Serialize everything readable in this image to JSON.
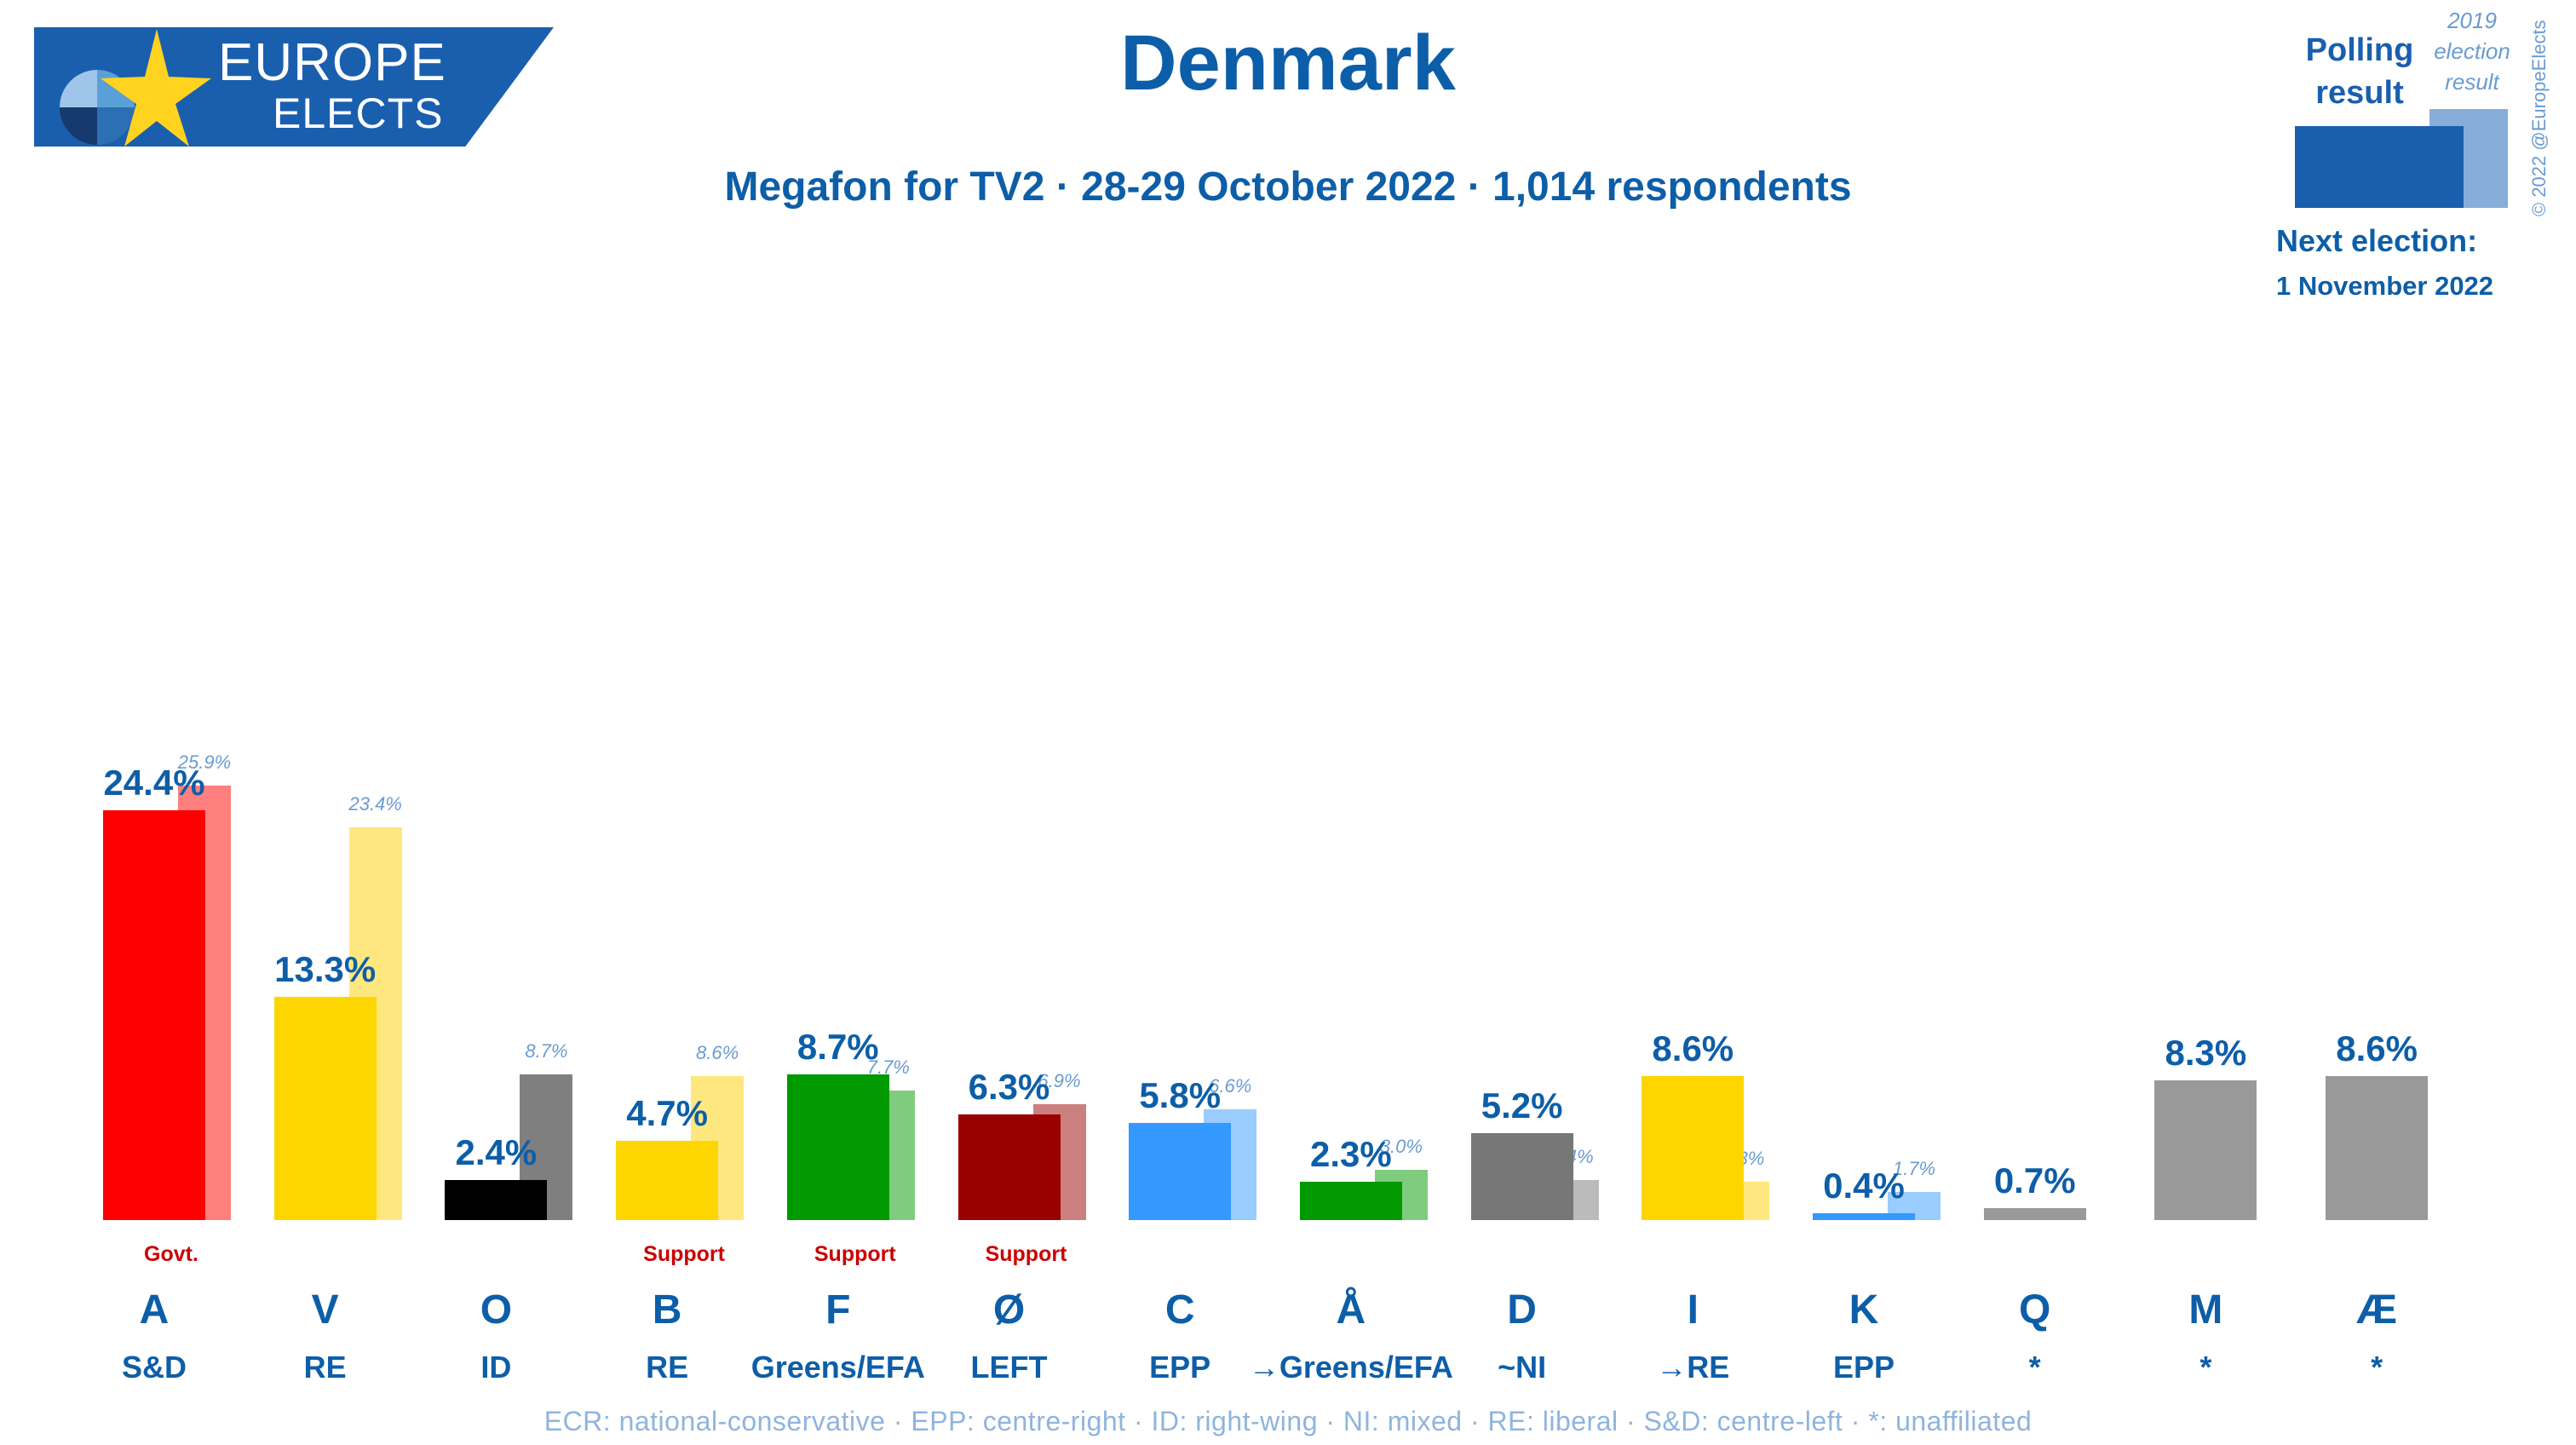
{
  "logo": {
    "line1": "EUROPE",
    "line2": "ELECTS"
  },
  "header": {
    "title": "Denmark",
    "subtitle": "Megafon for TV2 · 28-29 October 2022 · 1,014 respondents"
  },
  "legend": {
    "polling_line1": "Polling",
    "polling_line2": "result",
    "prev_line1": "2019",
    "prev_line2": "election",
    "prev_line3": "result",
    "copyright": "© 2022 @EuropeElects",
    "next_election_label": "Next election:",
    "next_election_date": "1 November 2022"
  },
  "footer": {
    "text": "ECR: national-conservative · EPP: centre-right · ID: right-wing · NI: mixed · RE: liberal · S&D: centre-left · *: unaffiliated"
  },
  "colors": {
    "text_primary": "#0d5ea8",
    "text_secondary": "#6a9bd1",
    "status": "#cc0000",
    "banner": "#1a5fae"
  },
  "chart_data": {
    "type": "bar",
    "title": "Denmark",
    "subtitle": "Megafon for TV2 · 28-29 October 2022 · 1,014 respondents",
    "categories": [
      "A",
      "V",
      "O",
      "B",
      "F",
      "Ø",
      "C",
      "Å",
      "D",
      "I",
      "K",
      "Q",
      "M",
      "Æ"
    ],
    "groups": [
      "S&D",
      "RE",
      "ID",
      "RE",
      "Greens/EFA",
      "LEFT",
      "EPP",
      "→Greens/EFA",
      "~NI",
      "→RE",
      "EPP",
      "*",
      "*",
      "*"
    ],
    "status": [
      "Govt.",
      "",
      "",
      "Support",
      "Support",
      "Support",
      "",
      "",
      "",
      "",
      "",
      "",
      "",
      ""
    ],
    "series": [
      {
        "name": "Polling result",
        "values": [
          24.4,
          13.3,
          2.4,
          4.7,
          8.7,
          6.3,
          5.8,
          2.3,
          5.2,
          8.6,
          0.4,
          0.7,
          8.3,
          8.6
        ]
      },
      {
        "name": "2019 election result",
        "values": [
          25.9,
          23.4,
          8.7,
          8.6,
          7.7,
          6.9,
          6.6,
          3.0,
          2.4,
          2.3,
          1.7,
          null,
          null,
          null
        ]
      }
    ],
    "poll_labels": [
      "24.4%",
      "13.3%",
      "2.4%",
      "4.7%",
      "8.7%",
      "6.3%",
      "5.8%",
      "2.3%",
      "5.2%",
      "8.6%",
      "0.4%",
      "0.7%",
      "8.3%",
      "8.6%"
    ],
    "prev_labels": [
      "25.9%",
      "23.4%",
      "8.7%",
      "8.6%",
      "7.7%",
      "6.9%",
      "6.6%",
      "3.0%",
      "2.4%",
      "2.3%",
      "1.7%",
      "",
      "",
      ""
    ],
    "poll_colors": [
      "#ff0000",
      "#fdd600",
      "#000000",
      "#fdd600",
      "#009a00",
      "#990000",
      "#3399ff",
      "#009a00",
      "#777777",
      "#fdd600",
      "#3399ff",
      "#999999",
      "#999999",
      "#999999"
    ],
    "prev_colors": [
      "#ff7f7f",
      "#fee77f",
      "#7f7f7f",
      "#fee77f",
      "#7fcc7f",
      "#cc7f7f",
      "#99ccff",
      "#7fcc7f",
      "#bbbbbb",
      "#fee77f",
      "#99ccff",
      "",
      "",
      ""
    ],
    "ylim": [
      0,
      26
    ],
    "grid": false,
    "legend_position": "top-right"
  }
}
